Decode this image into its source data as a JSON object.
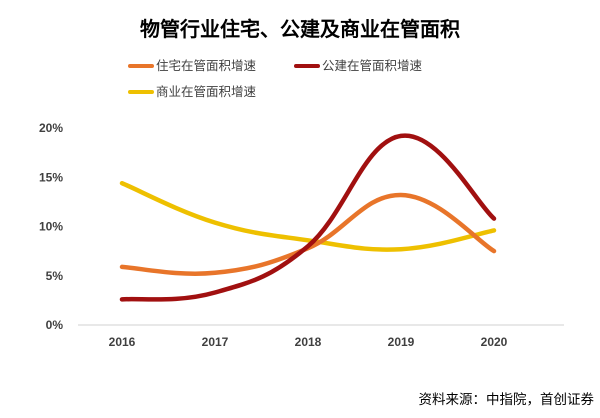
{
  "chart_data": {
    "type": "line",
    "title": "物管行业住宅、公建及商业在管面积",
    "xlabel": "",
    "ylabel": "",
    "categories": [
      "2016",
      "2017",
      "2018",
      "2019",
      "2020"
    ],
    "ylim": [
      0,
      20
    ],
    "y_ticks": [
      "0%",
      "5%",
      "10%",
      "15%",
      "20%"
    ],
    "y_tick_values": [
      0,
      5,
      10,
      15,
      20
    ],
    "grid": false,
    "smooth": true,
    "legend_position": "top",
    "series": [
      {
        "name": "住宅在管面积增速",
        "color": "#E8752A",
        "values": [
          5.9,
          5.3,
          7.8,
          13.2,
          7.5
        ]
      },
      {
        "name": "公建在管面积增速",
        "color": "#A11010",
        "values": [
          2.6,
          3.3,
          8.0,
          19.2,
          10.8
        ]
      },
      {
        "name": "商业在管面积增速",
        "color": "#EEC000",
        "values": [
          14.4,
          10.4,
          8.6,
          7.7,
          9.6
        ]
      }
    ],
    "source": "资料来源：中指院，首创证券"
  }
}
